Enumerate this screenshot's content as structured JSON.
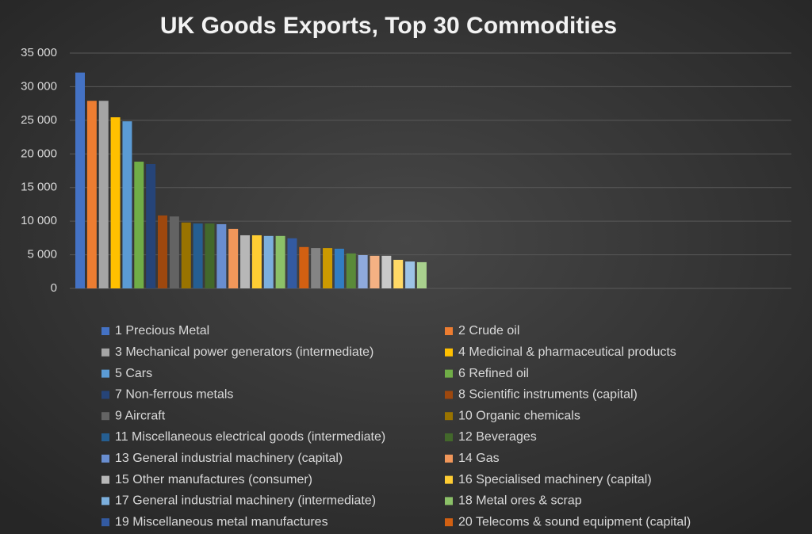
{
  "chart_data": {
    "type": "bar",
    "title": "UK Goods Exports, Top 30 Commodities",
    "categories": [
      "1 Precious Metal",
      "2 Crude oil",
      "3 Mechanical power generators (intermediate)",
      "4 Medicinal & pharmaceutical products",
      "5 Cars",
      "6 Refined oil",
      "7 Non-ferrous metals",
      "8 Scientific instruments (capital)",
      "9 Aircraft",
      "10 Organic chemicals",
      "11 Miscellaneous electrical goods (intermediate)",
      "12 Beverages",
      "13 General industrial machinery (capital)",
      "14 Gas",
      "15 Other manufactures (consumer)",
      "16 Specialised machinery (capital)",
      "17 General industrial machinery (intermediate)",
      "18 Metal ores & scrap",
      "19 Miscellaneous metal manufactures",
      "20 Telecoms & sound equipment (capital)",
      null,
      null,
      null,
      null,
      null,
      null,
      null,
      null,
      null,
      null
    ],
    "values": [
      32100,
      27900,
      27900,
      25450,
      24850,
      18850,
      18500,
      10850,
      10700,
      9800,
      9650,
      9650,
      9550,
      8850,
      7900,
      7900,
      7800,
      7800,
      7450,
      6150,
      6000,
      6000,
      5900,
      5200,
      4950,
      4850,
      4850,
      4250,
      4000,
      3900
    ],
    "colors": [
      "#4472c4",
      "#ed7d31",
      "#a5a5a5",
      "#ffc000",
      "#5b9bd5",
      "#70ad47",
      "#264478",
      "#9e480e",
      "#636363",
      "#997300",
      "#255e91",
      "#43682b",
      "#698ed0",
      "#f1975a",
      "#b7b7b7",
      "#ffcd33",
      "#7cafdd",
      "#8cc168",
      "#335aa1",
      "#d26012",
      "#848484",
      "#cc9a00",
      "#327dc2",
      "#5a8a39",
      "#8faadc",
      "#f4b183",
      "#c9c9c9",
      "#ffd966",
      "#9dc3e6",
      "#a9d18e"
    ],
    "ylim": [
      0,
      35000
    ],
    "yticks": [
      0,
      {
        "value": 5000,
        "label": "5 000"
      },
      {
        "value": 10000,
        "label": "10 000"
      },
      {
        "value": 15000,
        "label": "15 000"
      },
      {
        "value": 20000,
        "label": "20 000"
      },
      {
        "value": 25000,
        "label": "25 000"
      },
      {
        "value": 30000,
        "label": "30 000"
      },
      {
        "value": 35000,
        "label": "35 000"
      }
    ],
    "grid": true,
    "legend": "bottom"
  }
}
